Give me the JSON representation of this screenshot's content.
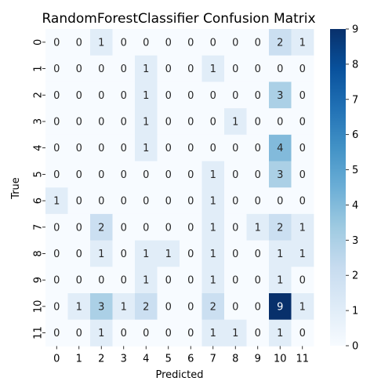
{
  "chart_data": {
    "type": "heatmap",
    "title": "RandomForestClassifier Confusion Matrix",
    "xlabel": "Predicted",
    "ylabel": "True",
    "x_categories": [
      "0",
      "1",
      "2",
      "3",
      "4",
      "5",
      "6",
      "7",
      "8",
      "9",
      "10",
      "11"
    ],
    "y_categories": [
      "0",
      "1",
      "2",
      "3",
      "4",
      "5",
      "6",
      "7",
      "8",
      "9",
      "10",
      "11"
    ],
    "values": [
      [
        0,
        0,
        1,
        0,
        0,
        0,
        0,
        0,
        0,
        0,
        2,
        1
      ],
      [
        0,
        0,
        0,
        0,
        1,
        0,
        0,
        1,
        0,
        0,
        0,
        0
      ],
      [
        0,
        0,
        0,
        0,
        1,
        0,
        0,
        0,
        0,
        0,
        3,
        0
      ],
      [
        0,
        0,
        0,
        0,
        1,
        0,
        0,
        0,
        1,
        0,
        0,
        0
      ],
      [
        0,
        0,
        0,
        0,
        1,
        0,
        0,
        0,
        0,
        0,
        4,
        0
      ],
      [
        0,
        0,
        0,
        0,
        0,
        0,
        0,
        1,
        0,
        0,
        3,
        0
      ],
      [
        1,
        0,
        0,
        0,
        0,
        0,
        0,
        1,
        0,
        0,
        0,
        0
      ],
      [
        0,
        0,
        2,
        0,
        0,
        0,
        0,
        1,
        0,
        1,
        2,
        1
      ],
      [
        0,
        0,
        1,
        0,
        1,
        1,
        0,
        1,
        0,
        0,
        1,
        1
      ],
      [
        0,
        0,
        0,
        0,
        1,
        0,
        0,
        1,
        0,
        0,
        1,
        0
      ],
      [
        0,
        1,
        3,
        1,
        2,
        0,
        0,
        2,
        0,
        0,
        9,
        1
      ],
      [
        0,
        0,
        1,
        0,
        0,
        0,
        0,
        1,
        1,
        0,
        1,
        0
      ]
    ],
    "colorbar": {
      "min": 0,
      "max": 9,
      "ticks": [
        0,
        1,
        2,
        3,
        4,
        5,
        6,
        7,
        8,
        9
      ]
    },
    "colormap": [
      "#f7fbff",
      "#deebf7",
      "#c6dbef",
      "#9ecae1",
      "#6baed6",
      "#4292c6",
      "#2171b5",
      "#08519c",
      "#08306b"
    ],
    "grid": false,
    "legend": "colorbar-right"
  }
}
